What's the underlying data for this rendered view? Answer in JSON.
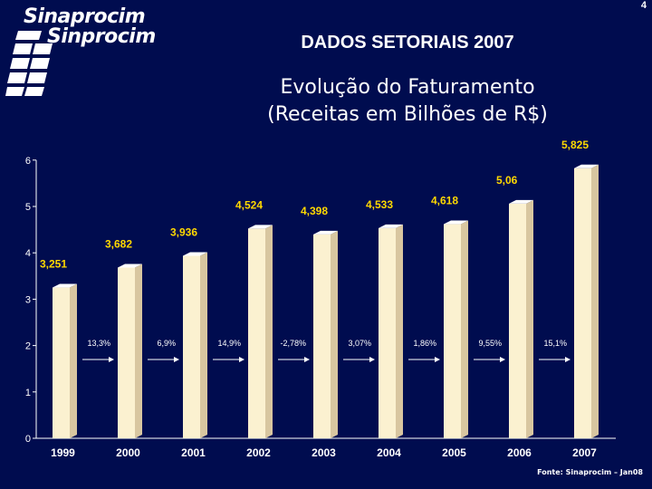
{
  "page_number": "4",
  "logo": {
    "line1": "Sinaprocim",
    "line2": "Sinprocim"
  },
  "slide_title": "DADOS SETORIAIS 2007",
  "chart_title_line1": "Evolução do Faturamento",
  "chart_title_line2": "(Receitas em Bilhões de R$)",
  "source": "Fonte: Sinaprocim – Jan08",
  "colors": {
    "background": "#000c4f",
    "bar_face": "#fbf1d0",
    "bar_side": "#d8c6a0",
    "value_label": "#ffd800",
    "axis": "#ffffff"
  },
  "chart_data": {
    "type": "bar",
    "categories": [
      "1999",
      "2000",
      "2001",
      "2002",
      "2003",
      "2004",
      "2005",
      "2006",
      "2007"
    ],
    "values": [
      3.251,
      3.682,
      3.936,
      4.524,
      4.398,
      4.533,
      4.618,
      5.06,
      5.825
    ],
    "value_labels": [
      "3,251",
      "3,682",
      "3,936",
      "4,524",
      "4,398",
      "4,533",
      "4,618",
      "5,06",
      "5,825"
    ],
    "growth_labels": [
      "13,3%",
      "6,9%",
      "14,9%",
      "-2,78%",
      "3,07%",
      "1,86%",
      "9,55%",
      "15,1%"
    ],
    "yticks": [
      "0",
      "1",
      "2",
      "3",
      "4",
      "5",
      "6"
    ],
    "ylim": [
      0,
      6
    ],
    "title": "Evolução do Faturamento (Receitas em Bilhões de R$)",
    "xlabel": "",
    "ylabel": ""
  }
}
